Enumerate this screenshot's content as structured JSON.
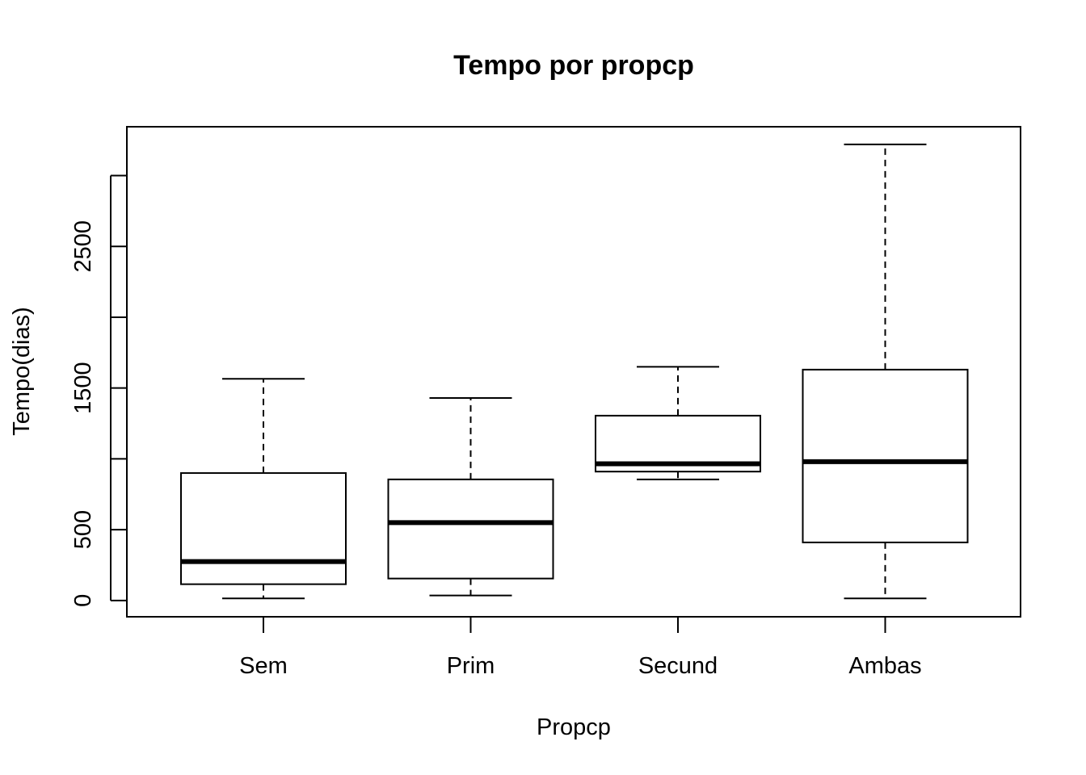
{
  "chart_data": {
    "type": "boxplot",
    "title": "Tempo por propcp",
    "xlabel": "Propcp",
    "ylabel": "Tempo(dias)",
    "categories": [
      "Sem",
      "Prim",
      "Secund",
      "Ambas"
    ],
    "yticks": [
      0,
      500,
      1000,
      1500,
      2000,
      2500,
      3000
    ],
    "ytick_labels": [
      "0",
      "500",
      "",
      "1500",
      "",
      "2500",
      ""
    ],
    "ylim": [
      -115,
      3345
    ],
    "boxes": [
      {
        "category": "Sem",
        "whisker_low": 15,
        "q1": 115,
        "median": 275,
        "q3": 900,
        "whisker_high": 1565
      },
      {
        "category": "Prim",
        "whisker_low": 35,
        "q1": 155,
        "median": 550,
        "q3": 855,
        "whisker_high": 1430
      },
      {
        "category": "Secund",
        "whisker_low": 855,
        "q1": 910,
        "median": 965,
        "q3": 1305,
        "whisker_high": 1650
      },
      {
        "category": "Ambas",
        "whisker_low": 15,
        "q1": 410,
        "median": 980,
        "q3": 1630,
        "whisker_high": 3220
      }
    ],
    "grid": false,
    "legend": "none"
  }
}
